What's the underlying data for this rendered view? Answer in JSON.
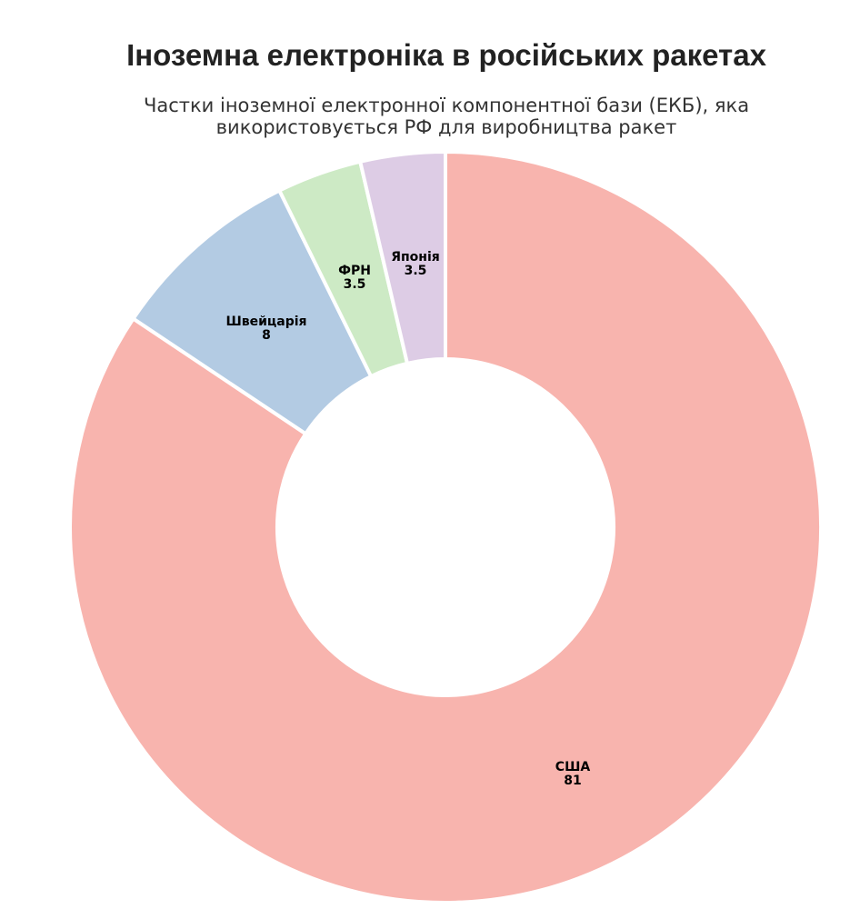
{
  "title": "Іноземна електроніка в російських ракетах",
  "subtitle_line1": "Частки іноземної електронної компонентної бази (ЕКБ), яка",
  "subtitle_line2": "використовується РФ для виробництва ракет",
  "chart_data": {
    "type": "pie",
    "donut": true,
    "legend": "none",
    "categories": [
      "США",
      "Швейцарія",
      "ФРН",
      "Японія"
    ],
    "values": [
      81,
      8,
      3.5,
      3.5
    ],
    "labels": [
      "81",
      "8",
      "3.5",
      "3.5"
    ],
    "colors": [
      "#f8b4ae",
      "#b3cbe3",
      "#cdeac5",
      "#ddcce5"
    ]
  }
}
